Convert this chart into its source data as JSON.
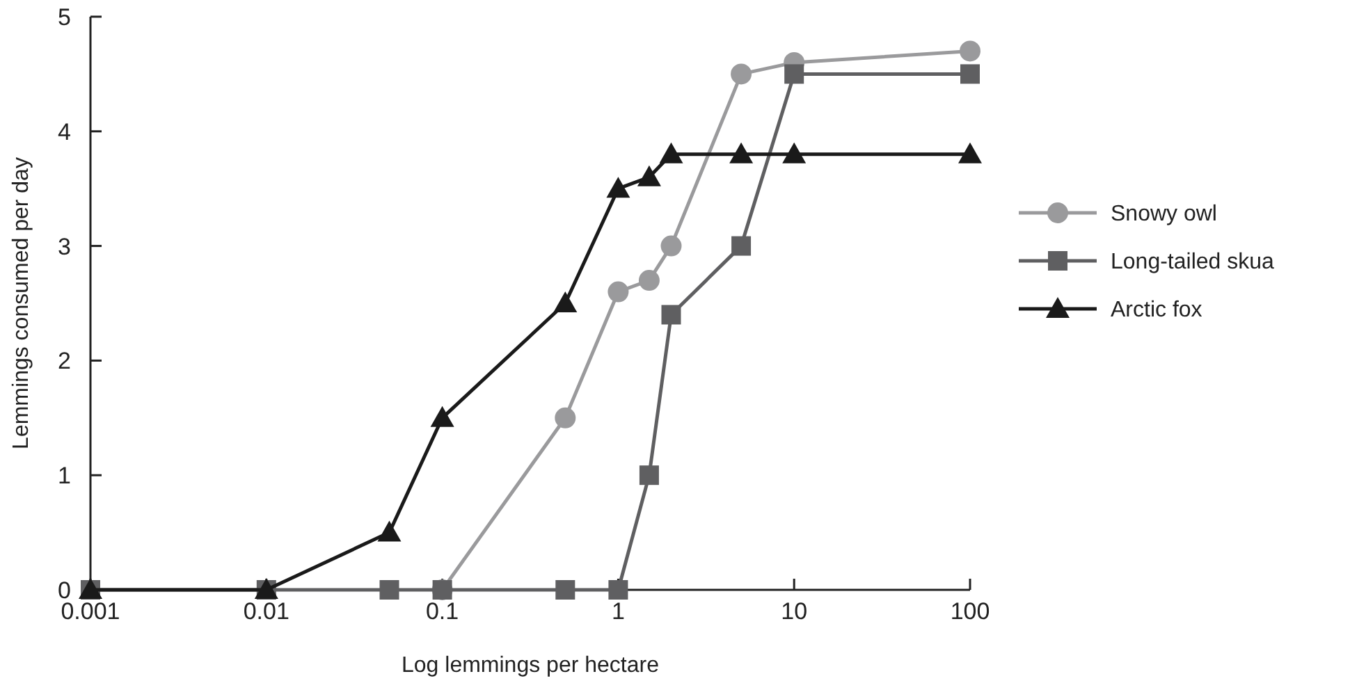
{
  "chart_data": {
    "type": "line",
    "xlabel": "Log lemmings per hectare",
    "ylabel": "Lemmings consumed per day",
    "x": [
      0.001,
      0.01,
      0.05,
      0.1,
      0.5,
      1,
      1.5,
      2,
      5,
      10,
      100
    ],
    "series": [
      {
        "name": "Snowy owl",
        "color": "#9a9a9c",
        "marker": "circle",
        "values": [
          null,
          null,
          null,
          0,
          1.5,
          2.6,
          2.7,
          3.0,
          4.5,
          4.6,
          4.7
        ]
      },
      {
        "name": "Long-tailed skua",
        "color": "#5f5f61",
        "marker": "square",
        "values": [
          0,
          0,
          0,
          0,
          0,
          0,
          1.0,
          2.4,
          3.0,
          4.5,
          4.5
        ]
      },
      {
        "name": "Arctic fox",
        "color": "#1a1a1a",
        "marker": "triangle",
        "values": [
          0,
          0,
          0.5,
          1.5,
          2.5,
          3.5,
          3.6,
          3.8,
          3.8,
          3.8,
          3.8
        ]
      }
    ],
    "log": "x",
    "xlim": [
      0.001,
      100
    ],
    "xticks": [
      0.001,
      0.01,
      0.1,
      1,
      10,
      100
    ],
    "ylim": [
      0,
      5
    ],
    "yticks": [
      0,
      1,
      2,
      3,
      4,
      5
    ],
    "grid": false,
    "legend": "right",
    "line_style": "solid"
  }
}
